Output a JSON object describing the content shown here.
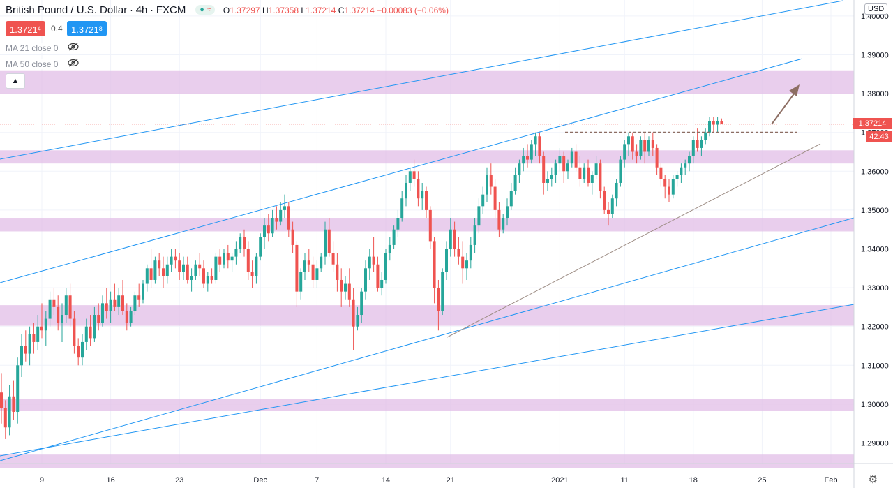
{
  "header": {
    "symbol": "British Pound / U.S. Dollar",
    "interval": "4h",
    "source": "FXCM",
    "status_icon": "market-status-icon",
    "ohlc": {
      "o_label": "O",
      "o_value": "1.37297",
      "h_label": "H",
      "h_value": "1.37358",
      "l_label": "L",
      "l_value": "1.37214",
      "c_label": "C",
      "c_value": "1.37214",
      "change": "−0.00083 (−0.06%)"
    },
    "bid_main": "1.3721",
    "bid_pip": "4",
    "spread": "0.4",
    "ask_main": "1.3721",
    "ask_pip": "8",
    "collapse_icon": "chevron-up-icon"
  },
  "indicators": [
    {
      "label": "MA 21 close 0",
      "icon": "eye-hidden-icon"
    },
    {
      "label": "MA 50 close 0",
      "icon": "eye-hidden-icon"
    }
  ],
  "axis": {
    "currency": "USD",
    "last_price": "1.37214",
    "countdown": "42:43",
    "settings_icon": "gear-icon"
  },
  "colors": {
    "up": "#26a69a",
    "down": "#ef5350",
    "channel": "#2196f3",
    "zone": "#e1bee7",
    "trend_line": "#9e8e86",
    "arrow": "#8d6e63"
  },
  "chart_data": {
    "type": "candlestick",
    "title": "British Pound / U.S. Dollar · 4h · FXCM",
    "ylim": [
      1.2835,
      1.4035
    ],
    "y_ticks": [
      1.29,
      1.3,
      1.31,
      1.32,
      1.33,
      1.34,
      1.35,
      1.36,
      1.37,
      1.38,
      1.39,
      1.4
    ],
    "y_tick_labels": [
      "1.29000",
      "1.30000",
      "1.31000",
      "1.32000",
      "1.33000",
      "1.34000",
      "1.35000",
      "1.36000",
      "1.37000",
      "1.38000",
      "1.39000",
      "1.40000"
    ],
    "x_ticks": [
      {
        "label": "9",
        "bar": 10
      },
      {
        "label": "16",
        "bar": 27
      },
      {
        "label": "23",
        "bar": 44
      },
      {
        "label": "Dec",
        "bar": 64
      },
      {
        "label": "7",
        "bar": 78
      },
      {
        "label": "14",
        "bar": 95
      },
      {
        "label": "21",
        "bar": 111
      },
      {
        "label": "2021",
        "bar": 138
      },
      {
        "label": "11",
        "bar": 154
      },
      {
        "label": "18",
        "bar": 171
      },
      {
        "label": "25",
        "bar": 188
      },
      {
        "label": "Feb",
        "bar": 205
      }
    ],
    "grid": true,
    "last_price": 1.37214,
    "candles": [
      [
        1.303,
        1.308,
        1.295,
        1.299
      ],
      [
        1.299,
        1.301,
        1.291,
        1.294
      ],
      [
        1.294,
        1.305,
        1.292,
        1.302
      ],
      [
        1.302,
        1.306,
        1.296,
        1.298
      ],
      [
        1.298,
        1.312,
        1.295,
        1.31
      ],
      [
        1.31,
        1.318,
        1.307,
        1.315
      ],
      [
        1.315,
        1.319,
        1.311,
        1.313
      ],
      [
        1.313,
        1.32,
        1.31,
        1.318
      ],
      [
        1.318,
        1.321,
        1.313,
        1.316
      ],
      [
        1.316,
        1.323,
        1.314,
        1.32
      ],
      [
        1.32,
        1.326,
        1.317,
        1.319
      ],
      [
        1.319,
        1.324,
        1.315,
        1.322
      ],
      [
        1.322,
        1.329,
        1.32,
        1.327
      ],
      [
        1.327,
        1.33,
        1.323,
        1.325
      ],
      [
        1.325,
        1.328,
        1.319,
        1.321
      ],
      [
        1.321,
        1.326,
        1.316,
        1.323
      ],
      [
        1.323,
        1.33,
        1.321,
        1.328
      ],
      [
        1.328,
        1.331,
        1.32,
        1.322
      ],
      [
        1.322,
        1.324,
        1.313,
        1.315
      ],
      [
        1.315,
        1.317,
        1.31,
        1.312
      ],
      [
        1.312,
        1.318,
        1.31,
        1.316
      ],
      [
        1.316,
        1.322,
        1.314,
        1.32
      ],
      [
        1.32,
        1.323,
        1.315,
        1.317
      ],
      [
        1.317,
        1.325,
        1.316,
        1.323
      ],
      [
        1.323,
        1.326,
        1.319,
        1.321
      ],
      [
        1.321,
        1.328,
        1.32,
        1.326
      ],
      [
        1.326,
        1.33,
        1.322,
        1.324
      ],
      [
        1.324,
        1.329,
        1.321,
        1.327
      ],
      [
        1.327,
        1.331,
        1.324,
        1.325
      ],
      [
        1.325,
        1.33,
        1.323,
        1.328
      ],
      [
        1.328,
        1.332,
        1.323,
        1.324
      ],
      [
        1.324,
        1.326,
        1.319,
        1.321
      ],
      [
        1.321,
        1.325,
        1.32,
        1.324
      ],
      [
        1.324,
        1.329,
        1.323,
        1.328
      ],
      [
        1.328,
        1.331,
        1.325,
        1.327
      ],
      [
        1.327,
        1.332,
        1.326,
        1.331
      ],
      [
        1.331,
        1.336,
        1.329,
        1.335
      ],
      [
        1.335,
        1.34,
        1.33,
        1.332
      ],
      [
        1.332,
        1.338,
        1.331,
        1.337
      ],
      [
        1.337,
        1.339,
        1.333,
        1.335
      ],
      [
        1.335,
        1.338,
        1.33,
        1.333
      ],
      [
        1.333,
        1.338,
        1.331,
        1.336
      ],
      [
        1.336,
        1.34,
        1.334,
        1.338
      ],
      [
        1.338,
        1.34,
        1.335,
        1.337
      ],
      [
        1.337,
        1.339,
        1.332,
        1.334
      ],
      [
        1.334,
        1.338,
        1.332,
        1.336
      ],
      [
        1.336,
        1.338,
        1.331,
        1.332
      ],
      [
        1.332,
        1.335,
        1.329,
        1.333
      ],
      [
        1.333,
        1.337,
        1.332,
        1.336
      ],
      [
        1.336,
        1.339,
        1.333,
        1.335
      ],
      [
        1.335,
        1.337,
        1.33,
        1.331
      ],
      [
        1.331,
        1.334,
        1.329,
        1.333
      ],
      [
        1.333,
        1.335,
        1.331,
        1.332
      ],
      [
        1.332,
        1.339,
        1.331,
        1.338
      ],
      [
        1.338,
        1.34,
        1.334,
        1.336
      ],
      [
        1.336,
        1.34,
        1.335,
        1.339
      ],
      [
        1.339,
        1.341,
        1.335,
        1.337
      ],
      [
        1.337,
        1.339,
        1.334,
        1.338
      ],
      [
        1.338,
        1.342,
        1.336,
        1.34
      ],
      [
        1.34,
        1.344,
        1.339,
        1.343
      ],
      [
        1.343,
        1.345,
        1.338,
        1.34
      ],
      [
        1.34,
        1.342,
        1.332,
        1.334
      ],
      [
        1.334,
        1.337,
        1.33,
        1.333
      ],
      [
        1.333,
        1.339,
        1.331,
        1.338
      ],
      [
        1.338,
        1.344,
        1.337,
        1.343
      ],
      [
        1.343,
        1.348,
        1.34,
        1.346
      ],
      [
        1.346,
        1.349,
        1.342,
        1.344
      ],
      [
        1.344,
        1.35,
        1.343,
        1.348
      ],
      [
        1.348,
        1.351,
        1.345,
        1.347
      ],
      [
        1.347,
        1.352,
        1.346,
        1.35
      ],
      [
        1.35,
        1.354,
        1.348,
        1.351
      ],
      [
        1.351,
        1.352,
        1.343,
        1.345
      ],
      [
        1.345,
        1.347,
        1.339,
        1.341
      ],
      [
        1.341,
        1.342,
        1.325,
        1.329
      ],
      [
        1.329,
        1.335,
        1.327,
        1.334
      ],
      [
        1.334,
        1.339,
        1.332,
        1.337
      ],
      [
        1.337,
        1.34,
        1.334,
        1.336
      ],
      [
        1.336,
        1.338,
        1.33,
        1.332
      ],
      [
        1.332,
        1.337,
        1.33,
        1.335
      ],
      [
        1.335,
        1.339,
        1.334,
        1.338
      ],
      [
        1.338,
        1.347,
        1.336,
        1.345
      ],
      [
        1.345,
        1.348,
        1.338,
        1.339
      ],
      [
        1.339,
        1.342,
        1.334,
        1.336
      ],
      [
        1.336,
        1.339,
        1.329,
        1.332
      ],
      [
        1.332,
        1.335,
        1.325,
        1.329
      ],
      [
        1.329,
        1.333,
        1.327,
        1.331
      ],
      [
        1.331,
        1.335,
        1.325,
        1.327
      ],
      [
        1.327,
        1.33,
        1.314,
        1.32
      ],
      [
        1.32,
        1.325,
        1.319,
        1.323
      ],
      [
        1.323,
        1.33,
        1.321,
        1.329
      ],
      [
        1.329,
        1.337,
        1.327,
        1.335
      ],
      [
        1.335,
        1.34,
        1.332,
        1.338
      ],
      [
        1.338,
        1.343,
        1.334,
        1.336
      ],
      [
        1.336,
        1.338,
        1.329,
        1.33
      ],
      [
        1.33,
        1.334,
        1.328,
        1.332
      ],
      [
        1.332,
        1.34,
        1.331,
        1.339
      ],
      [
        1.339,
        1.343,
        1.337,
        1.341
      ],
      [
        1.341,
        1.346,
        1.34,
        1.345
      ],
      [
        1.345,
        1.35,
        1.343,
        1.348
      ],
      [
        1.348,
        1.355,
        1.347,
        1.353
      ],
      [
        1.353,
        1.359,
        1.351,
        1.357
      ],
      [
        1.357,
        1.361,
        1.355,
        1.36
      ],
      [
        1.36,
        1.363,
        1.356,
        1.358
      ],
      [
        1.358,
        1.36,
        1.351,
        1.353
      ],
      [
        1.353,
        1.357,
        1.35,
        1.355
      ],
      [
        1.355,
        1.356,
        1.348,
        1.35
      ],
      [
        1.35,
        1.351,
        1.34,
        1.342
      ],
      [
        1.342,
        1.343,
        1.326,
        1.33
      ],
      [
        1.33,
        1.332,
        1.319,
        1.324
      ],
      [
        1.324,
        1.335,
        1.323,
        1.334
      ],
      [
        1.334,
        1.342,
        1.332,
        1.34
      ],
      [
        1.34,
        1.348,
        1.338,
        1.345
      ],
      [
        1.345,
        1.347,
        1.338,
        1.34
      ],
      [
        1.34,
        1.343,
        1.336,
        1.338
      ],
      [
        1.338,
        1.342,
        1.331,
        1.335
      ],
      [
        1.335,
        1.339,
        1.332,
        1.337
      ],
      [
        1.337,
        1.343,
        1.335,
        1.341
      ],
      [
        1.341,
        1.348,
        1.339,
        1.346
      ],
      [
        1.346,
        1.353,
        1.344,
        1.351
      ],
      [
        1.351,
        1.356,
        1.349,
        1.354
      ],
      [
        1.354,
        1.361,
        1.352,
        1.359
      ],
      [
        1.359,
        1.362,
        1.354,
        1.356
      ],
      [
        1.356,
        1.358,
        1.348,
        1.35
      ],
      [
        1.35,
        1.352,
        1.343,
        1.345
      ],
      [
        1.345,
        1.349,
        1.344,
        1.348
      ],
      [
        1.348,
        1.353,
        1.346,
        1.351
      ],
      [
        1.351,
        1.357,
        1.35,
        1.355
      ],
      [
        1.355,
        1.361,
        1.354,
        1.359
      ],
      [
        1.359,
        1.363,
        1.357,
        1.362
      ],
      [
        1.362,
        1.366,
        1.36,
        1.364
      ],
      [
        1.364,
        1.367,
        1.361,
        1.363
      ],
      [
        1.363,
        1.368,
        1.362,
        1.367
      ],
      [
        1.367,
        1.37,
        1.364,
        1.369
      ],
      [
        1.369,
        1.37,
        1.362,
        1.364
      ],
      [
        1.364,
        1.365,
        1.354,
        1.357
      ],
      [
        1.357,
        1.36,
        1.355,
        1.358
      ],
      [
        1.358,
        1.361,
        1.356,
        1.359
      ],
      [
        1.359,
        1.363,
        1.357,
        1.362
      ],
      [
        1.362,
        1.366,
        1.36,
        1.364
      ],
      [
        1.364,
        1.365,
        1.357,
        1.36
      ],
      [
        1.36,
        1.363,
        1.358,
        1.362
      ],
      [
        1.362,
        1.366,
        1.361,
        1.365
      ],
      [
        1.365,
        1.367,
        1.36,
        1.361
      ],
      [
        1.361,
        1.364,
        1.356,
        1.358
      ],
      [
        1.358,
        1.362,
        1.357,
        1.361
      ],
      [
        1.361,
        1.363,
        1.356,
        1.357
      ],
      [
        1.357,
        1.36,
        1.354,
        1.359
      ],
      [
        1.359,
        1.364,
        1.358,
        1.362
      ],
      [
        1.362,
        1.363,
        1.353,
        1.355
      ],
      [
        1.355,
        1.356,
        1.349,
        1.35
      ],
      [
        1.35,
        1.352,
        1.346,
        1.349
      ],
      [
        1.349,
        1.354,
        1.348,
        1.353
      ],
      [
        1.353,
        1.358,
        1.351,
        1.357
      ],
      [
        1.357,
        1.364,
        1.356,
        1.363
      ],
      [
        1.363,
        1.368,
        1.361,
        1.367
      ],
      [
        1.367,
        1.37,
        1.364,
        1.369
      ],
      [
        1.369,
        1.37,
        1.363,
        1.365
      ],
      [
        1.365,
        1.367,
        1.362,
        1.364
      ],
      [
        1.364,
        1.369,
        1.363,
        1.368
      ],
      [
        1.368,
        1.37,
        1.362,
        1.365
      ],
      [
        1.365,
        1.369,
        1.364,
        1.368
      ],
      [
        1.368,
        1.37,
        1.364,
        1.366
      ],
      [
        1.366,
        1.367,
        1.359,
        1.361
      ],
      [
        1.361,
        1.362,
        1.356,
        1.358
      ],
      [
        1.358,
        1.359,
        1.353,
        1.356
      ],
      [
        1.356,
        1.358,
        1.352,
        1.354
      ],
      [
        1.354,
        1.359,
        1.353,
        1.358
      ],
      [
        1.358,
        1.36,
        1.356,
        1.359
      ],
      [
        1.359,
        1.362,
        1.357,
        1.361
      ],
      [
        1.361,
        1.363,
        1.359,
        1.362
      ],
      [
        1.362,
        1.365,
        1.36,
        1.364
      ],
      [
        1.364,
        1.369,
        1.362,
        1.368
      ],
      [
        1.368,
        1.371,
        1.365,
        1.366
      ],
      [
        1.366,
        1.369,
        1.364,
        1.368
      ],
      [
        1.368,
        1.371,
        1.367,
        1.37
      ],
      [
        1.37,
        1.374,
        1.369,
        1.373
      ],
      [
        1.373,
        1.374,
        1.37,
        1.372
      ],
      [
        1.372,
        1.374,
        1.37,
        1.373
      ],
      [
        1.373,
        1.3736,
        1.3721,
        1.3721
      ]
    ]
  }
}
